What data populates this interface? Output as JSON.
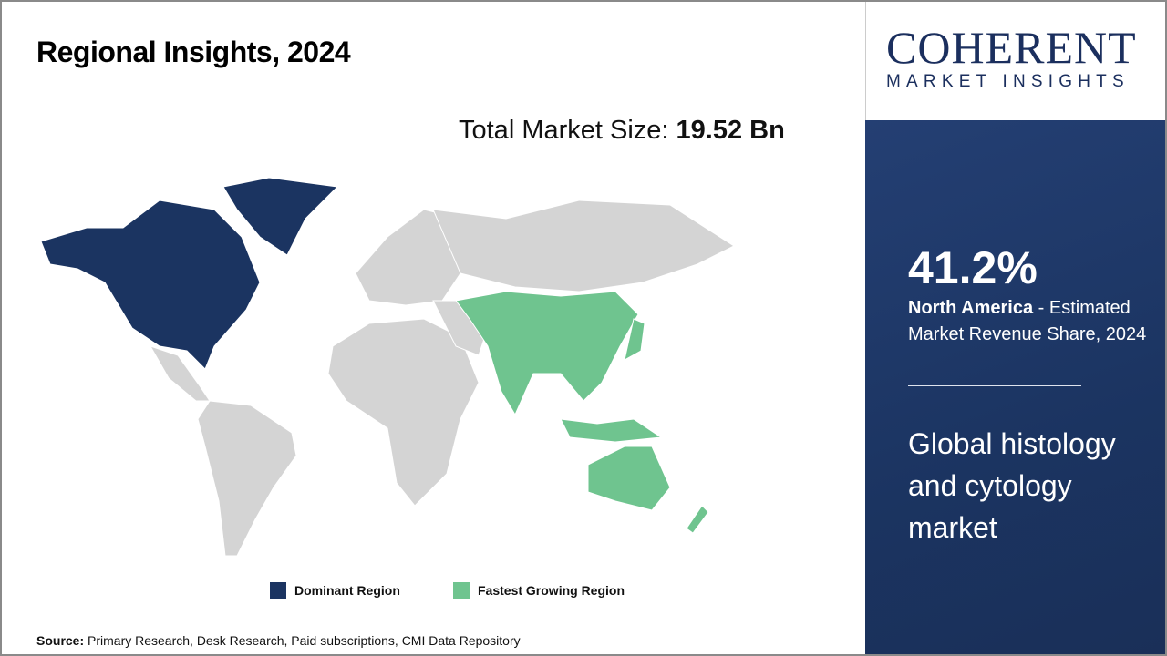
{
  "title": "Regional Insights, 2024",
  "total_market": {
    "label": "Total Market Size:",
    "value": "19.52 Bn"
  },
  "legend": [
    {
      "label": "Dominant Region",
      "color": "#1b3461"
    },
    {
      "label": "Fastest Growing Region",
      "color": "#6fc48f"
    }
  ],
  "map": {
    "dominant_region": "North America",
    "fastest_growing_region": "Asia Pacific",
    "other_color": "#d4d4d4"
  },
  "source": {
    "label": "Source:",
    "text": "Primary Research, Desk Research, Paid subscriptions, CMI Data Repository"
  },
  "logo": {
    "name": "COHERENT",
    "tagline": "MARKET INSIGHTS"
  },
  "highlight": {
    "percent": "41.2%",
    "region": "North America",
    "description": "- Estimated Market Revenue Share, 2024",
    "market": "Global histology and cytology market"
  }
}
